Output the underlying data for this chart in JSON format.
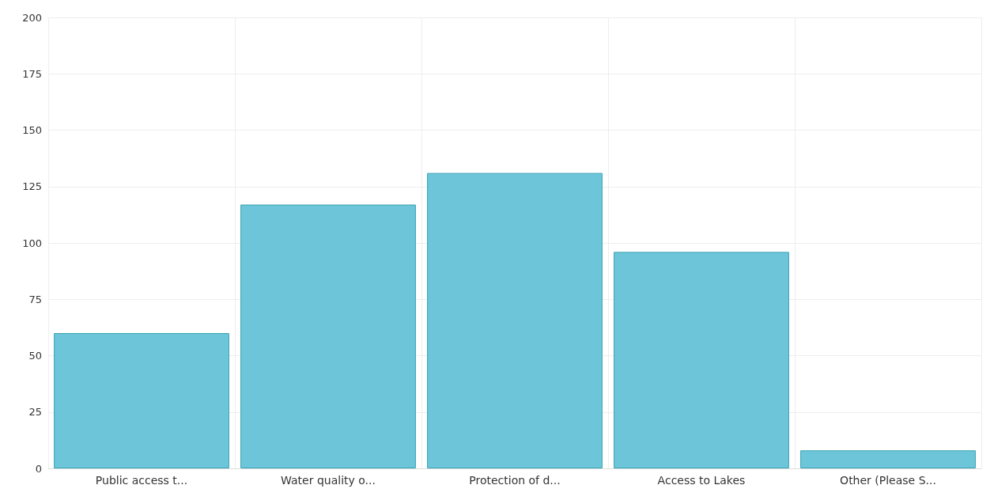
{
  "chart_data": {
    "type": "bar",
    "categories": [
      "Public access t...",
      "Water quality o...",
      "Protection of d...",
      "Access to Lakes",
      "Other (Please S..."
    ],
    "values": [
      60,
      117,
      131,
      96,
      8
    ],
    "color": "#6cc5d8",
    "ylim": [
      0,
      200
    ],
    "yticks": [
      0,
      25,
      50,
      75,
      100,
      125,
      150,
      175,
      200
    ],
    "grid": true
  }
}
